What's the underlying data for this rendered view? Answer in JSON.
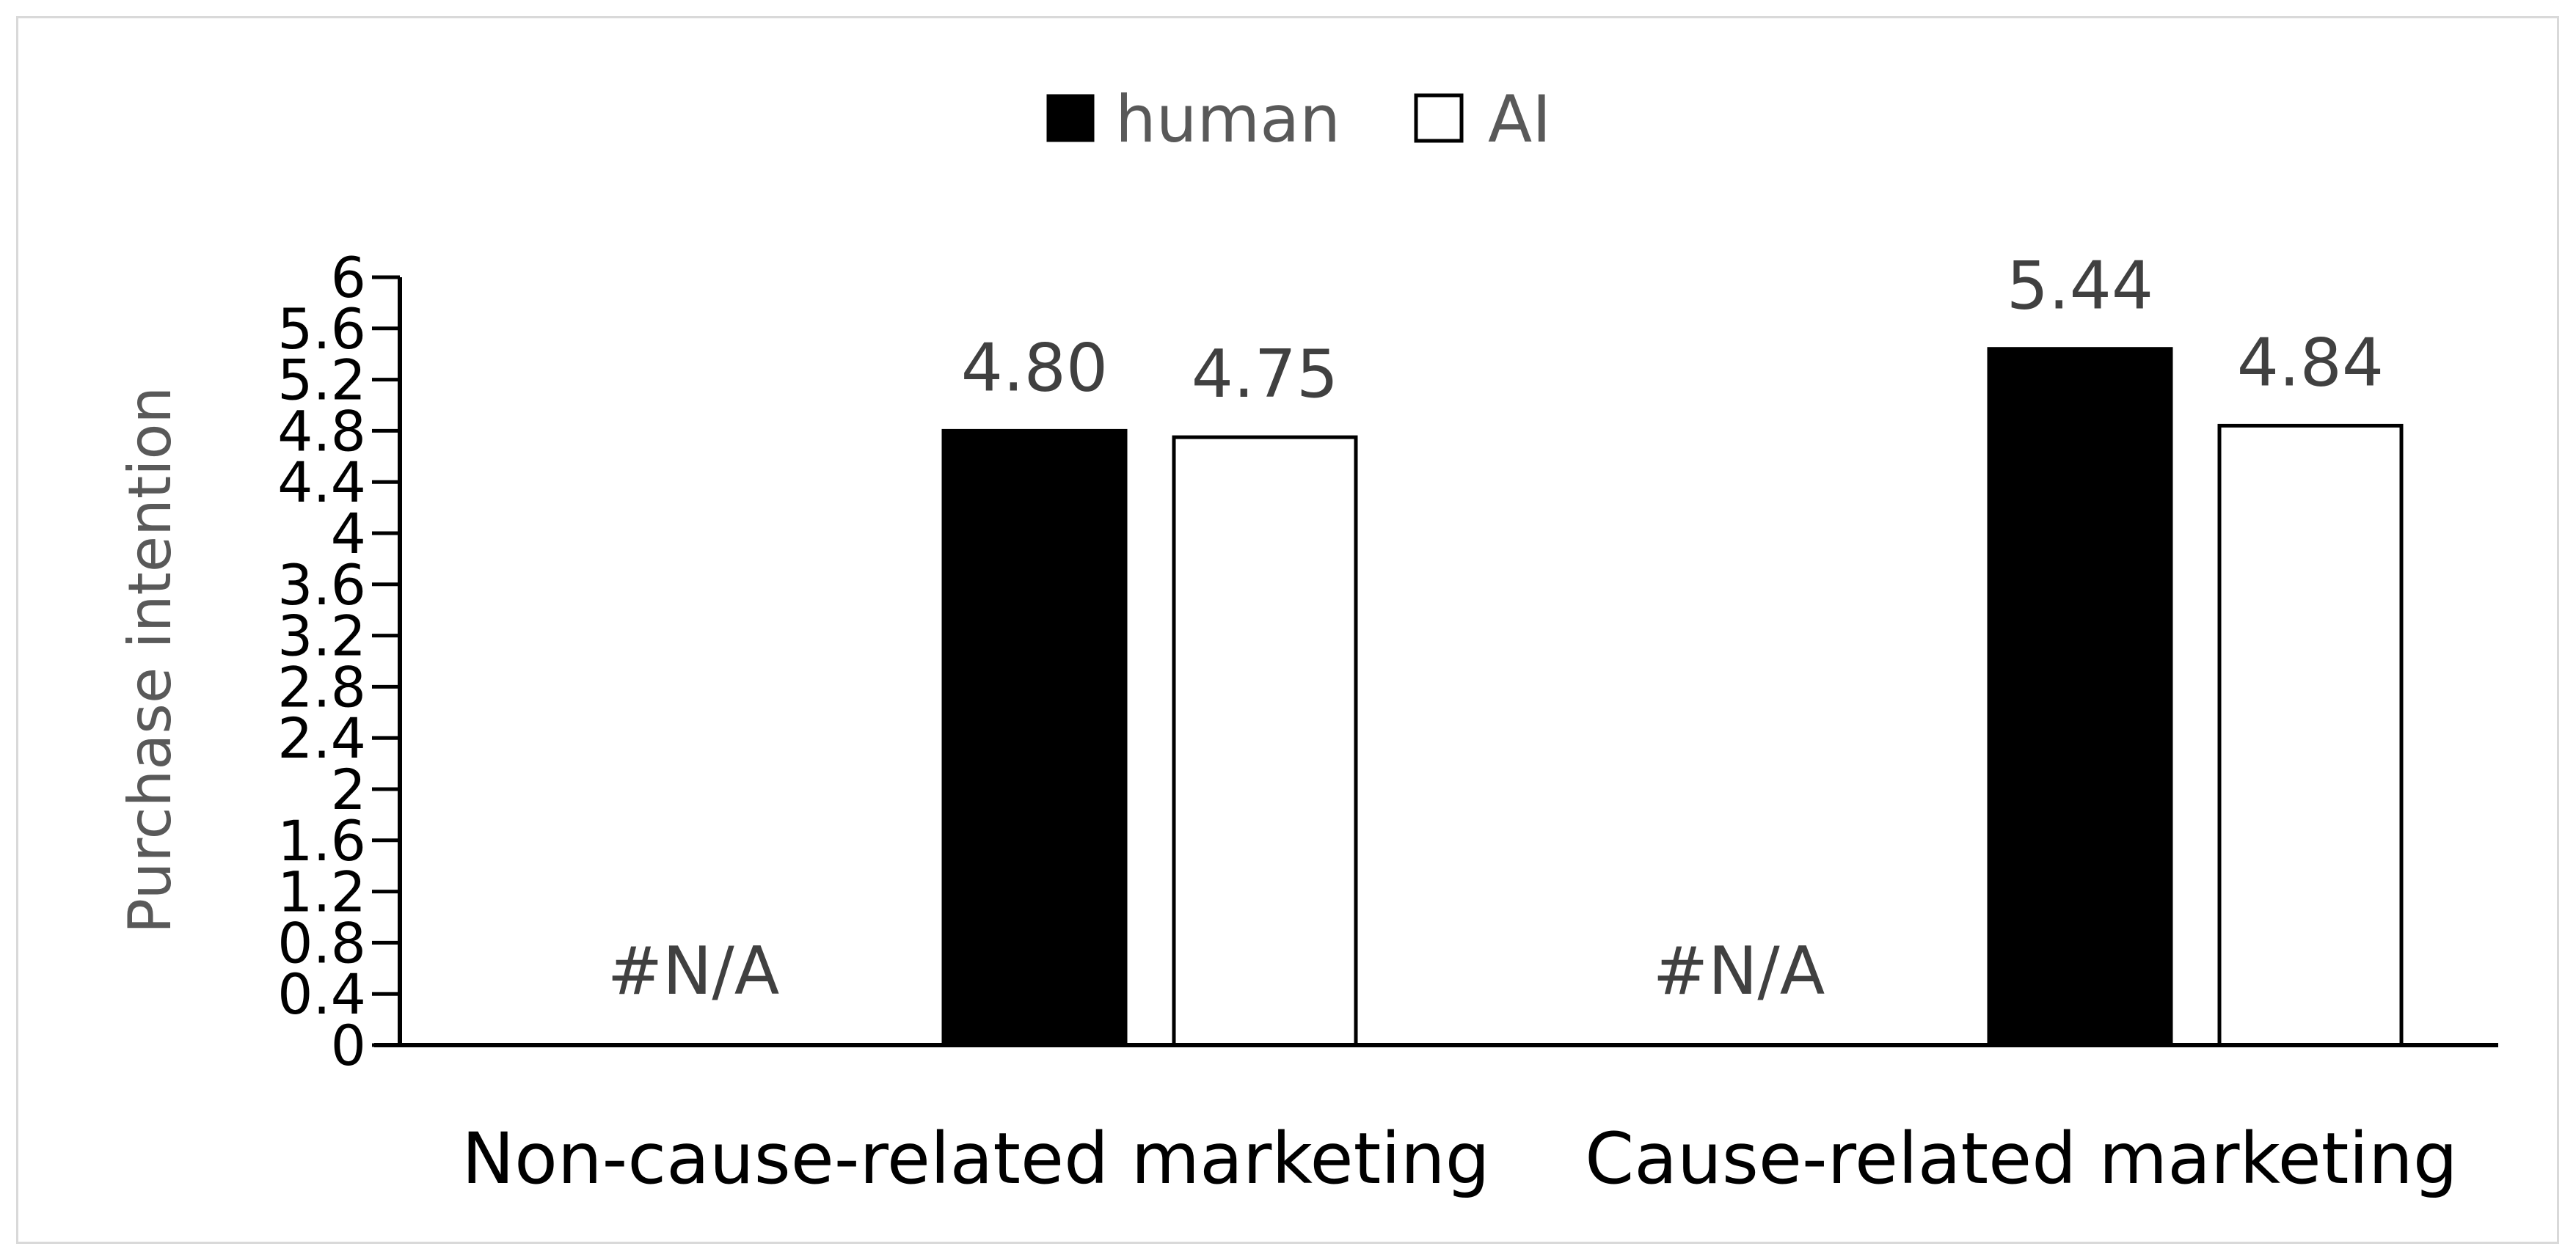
{
  "chart_data": {
    "type": "bar",
    "title": "",
    "xlabel": "",
    "ylabel": "Purchase intention",
    "ylim": [
      0,
      6
    ],
    "yticks": [
      "0",
      "0.4",
      "0.8",
      "1.2",
      "1.6",
      "2",
      "2.4",
      "2.8",
      "3.2",
      "3.6",
      "4",
      "4.4",
      "4.8",
      "5.2",
      "5.6",
      "6"
    ],
    "categories": [
      "Non-cause-related marketing",
      "Cause-related marketing"
    ],
    "na_labels": [
      "#N/A",
      "#N/A"
    ],
    "legend": {
      "position": "top",
      "entries": [
        "human",
        "AI"
      ]
    },
    "series": [
      {
        "name": "human",
        "values": [
          4.8,
          5.44
        ],
        "labels": [
          "4.80",
          "5.44"
        ],
        "color": "#000000"
      },
      {
        "name": "AI",
        "values": [
          4.75,
          4.84
        ],
        "labels": [
          "4.75",
          "4.84"
        ],
        "color": "#ffffff"
      }
    ],
    "grid": false
  }
}
